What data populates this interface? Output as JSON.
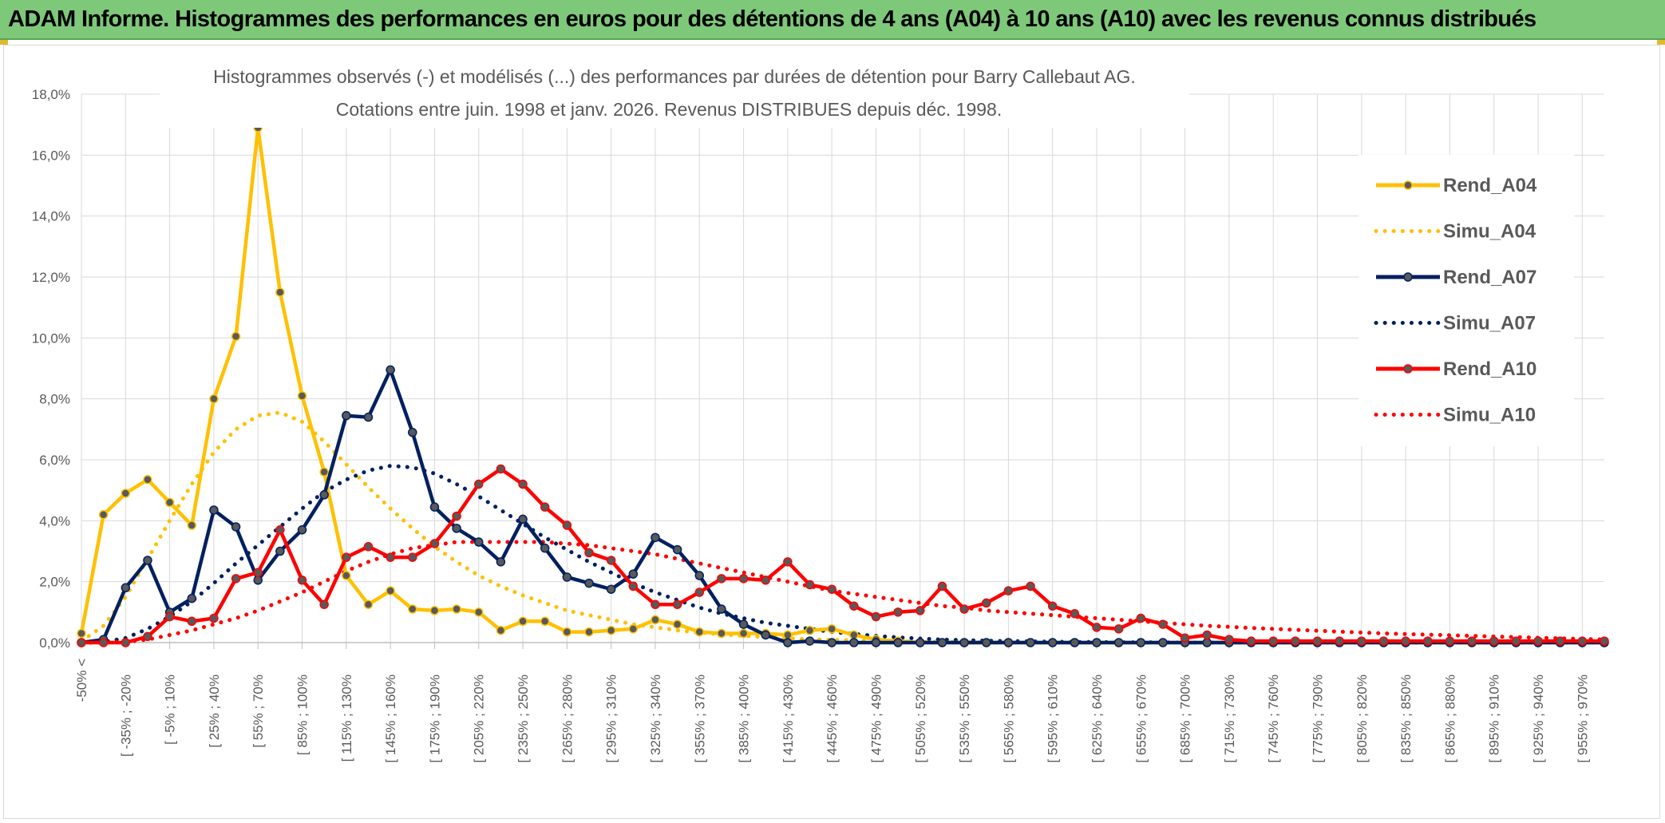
{
  "header": {
    "title": "ADAM Informe. Histogrammes des performances en euros pour des détentions de 4 ans (A04) à 10 ans (A10) avec les revenus connus distribués"
  },
  "chart_data": {
    "type": "line",
    "title": "Histogrammes observés (-) et modélisés (...) des performances par durées de détention pour Barry Callebaut AG.",
    "subtitle": "Cotations entre juin. 1998 et janv. 2026. Revenus DISTRIBUES depuis déc. 1998.",
    "xlabel": "",
    "ylabel": "",
    "ylim": [
      0,
      18
    ],
    "y_ticks": [
      "0,0%",
      "2,0%",
      "4,0%",
      "6,0%",
      "8,0%",
      "10,0%",
      "12,0%",
      "14,0%",
      "16,0%",
      "18,0%"
    ],
    "grid": true,
    "legend_position": "right",
    "x_tick_labels": [
      "-50% <",
      "[ -35% ; -20%",
      "[ -5% ; 10%",
      "[ 25% ; 40%",
      "[ 55% ; 70%",
      "[ 85% ; 100%",
      "[ 115% ; 130%",
      "[ 145% ; 160%",
      "[ 175% ; 190%",
      "[ 205% ; 220%",
      "[ 235% ; 250%",
      "[ 265% ; 280%",
      "[ 295% ; 310%",
      "[ 325% ; 340%",
      "[ 355% ; 370%",
      "[ 385% ; 400%",
      "[ 415% ; 430%",
      "[ 445% ; 460%",
      "[ 475% ; 490%",
      "[ 505% ; 520%",
      "[ 535% ; 550%",
      "[ 565% ; 580%",
      "[ 595% ; 610%",
      "[ 625% ; 640%",
      "[ 655% ; 670%",
      "[ 685% ; 700%",
      "[ 715% ; 730%",
      "[ 745% ; 760%",
      "[ 775% ; 790%",
      "[ 805% ; 820%",
      "[ 835% ; 850%",
      "[ 865% ; 880%",
      "[ 895% ; 910%",
      "[ 925% ; 940%",
      "[ 955% ; 970%"
    ],
    "x_tick_every": 2,
    "num_bins": 70,
    "series": [
      {
        "name": "Rend_A04",
        "color": "#FFC000",
        "style": "solid",
        "markers": true,
        "values": [
          0.3,
          4.2,
          4.9,
          5.35,
          4.6,
          3.85,
          8.0,
          10.05,
          16.9,
          11.5,
          8.1,
          5.6,
          2.2,
          1.25,
          1.7,
          1.1,
          1.05,
          1.1,
          1.0,
          0.4,
          0.7,
          0.7,
          0.35,
          0.35,
          0.4,
          0.45,
          0.75,
          0.6,
          0.35,
          0.3,
          0.3,
          0.3,
          0.25,
          0.4,
          0.45,
          0.25,
          0.1,
          0.05,
          0.0,
          0.0,
          0.0,
          0.0,
          0.0,
          0.0,
          0.0,
          0.0,
          0.0,
          0.0,
          0.0,
          0.0,
          0.0,
          0.0,
          0.0,
          0.0,
          0.0,
          0.0,
          0.0,
          0.0,
          0.0,
          0.0,
          0.0,
          0.0,
          0.0,
          0.0,
          0.0,
          0.0,
          0.0,
          0.0,
          0.0,
          0.0
        ]
      },
      {
        "name": "Simu_A04",
        "color": "#FFC000",
        "style": "dotted",
        "markers": false,
        "values": [
          0.05,
          0.55,
          1.5,
          2.75,
          4.0,
          5.2,
          6.25,
          7.0,
          7.45,
          7.55,
          7.25,
          6.6,
          5.85,
          5.1,
          4.4,
          3.75,
          3.15,
          2.65,
          2.2,
          1.85,
          1.55,
          1.3,
          1.05,
          0.9,
          0.75,
          0.6,
          0.5,
          0.4,
          0.33,
          0.27,
          0.22,
          0.18,
          0.14,
          0.11,
          0.09,
          0.07,
          0.05,
          0.04,
          0.03,
          0.02,
          0.02,
          0.01,
          0.01,
          0.0,
          0.0,
          0.0,
          0.0,
          0.0,
          0.0,
          0.0,
          0.0,
          0.0,
          0.0,
          0.0,
          0.0,
          0.0,
          0.0,
          0.0,
          0.0,
          0.0,
          0.0,
          0.0,
          0.0,
          0.0,
          0.0,
          0.0,
          0.0,
          0.0,
          0.0,
          0.0
        ]
      },
      {
        "name": "Rend_A07",
        "color": "#002060",
        "style": "solid",
        "markers": true,
        "values": [
          0.0,
          0.1,
          1.8,
          2.7,
          1.0,
          1.45,
          4.35,
          3.8,
          2.05,
          3.0,
          3.7,
          4.85,
          7.45,
          7.4,
          8.95,
          6.9,
          4.45,
          3.75,
          3.3,
          2.65,
          4.05,
          3.1,
          2.15,
          1.95,
          1.75,
          2.25,
          3.45,
          3.05,
          2.2,
          1.1,
          0.6,
          0.25,
          0.0,
          0.05,
          0.0,
          0.0,
          0.0,
          0.0,
          0.0,
          0.0,
          0.0,
          0.0,
          0.0,
          0.0,
          0.0,
          0.0,
          0.0,
          0.0,
          0.0,
          0.0,
          0.0,
          0.0,
          0.0,
          0.0,
          0.0,
          0.0,
          0.0,
          0.0,
          0.0,
          0.0,
          0.0,
          0.0,
          0.0,
          0.0,
          0.0,
          0.0,
          0.0,
          0.0,
          0.0,
          0.0
        ]
      },
      {
        "name": "Simu_A07",
        "color": "#002060",
        "style": "dotted",
        "markers": false,
        "values": [
          0.0,
          0.02,
          0.15,
          0.45,
          0.85,
          1.35,
          1.95,
          2.6,
          3.2,
          3.8,
          4.4,
          4.95,
          5.35,
          5.65,
          5.8,
          5.75,
          5.55,
          5.2,
          4.8,
          4.35,
          3.9,
          3.45,
          3.05,
          2.65,
          2.3,
          1.95,
          1.65,
          1.4,
          1.15,
          0.95,
          0.8,
          0.65,
          0.55,
          0.45,
          0.35,
          0.28,
          0.22,
          0.17,
          0.13,
          0.1,
          0.08,
          0.06,
          0.05,
          0.04,
          0.03,
          0.02,
          0.02,
          0.01,
          0.01,
          0.01,
          0.0,
          0.0,
          0.0,
          0.0,
          0.0,
          0.0,
          0.0,
          0.0,
          0.0,
          0.0,
          0.0,
          0.0,
          0.0,
          0.0,
          0.0,
          0.0,
          0.0,
          0.0,
          0.0,
          0.0
        ]
      },
      {
        "name": "Rend_A10",
        "color": "#FF0000",
        "style": "solid",
        "markers": true,
        "values": [
          0.0,
          0.0,
          0.0,
          0.2,
          0.85,
          0.7,
          0.8,
          2.1,
          2.3,
          3.7,
          2.05,
          1.25,
          2.8,
          3.15,
          2.8,
          2.8,
          3.25,
          4.15,
          5.2,
          5.7,
          5.2,
          4.45,
          3.85,
          2.95,
          2.7,
          1.85,
          1.25,
          1.25,
          1.65,
          2.1,
          2.1,
          2.05,
          2.65,
          1.9,
          1.75,
          1.2,
          0.85,
          1.0,
          1.05,
          1.85,
          1.1,
          1.3,
          1.7,
          1.85,
          1.2,
          0.95,
          0.5,
          0.45,
          0.8,
          0.6,
          0.15,
          0.25,
          0.1,
          0.05,
          0.05,
          0.05,
          0.05,
          0.05,
          0.05,
          0.05,
          0.05,
          0.05,
          0.05,
          0.05,
          0.05,
          0.05,
          0.05,
          0.05,
          0.05,
          0.05
        ]
      },
      {
        "name": "Simu_A10",
        "color": "#FF0000",
        "style": "dotted",
        "markers": false,
        "values": [
          0.0,
          0.0,
          0.02,
          0.1,
          0.25,
          0.4,
          0.6,
          0.8,
          1.05,
          1.35,
          1.65,
          2.0,
          2.35,
          2.65,
          2.9,
          3.1,
          3.2,
          3.3,
          3.3,
          3.3,
          3.3,
          3.3,
          3.25,
          3.2,
          3.1,
          3.0,
          2.9,
          2.75,
          2.6,
          2.45,
          2.3,
          2.15,
          2.0,
          1.85,
          1.7,
          1.6,
          1.5,
          1.4,
          1.3,
          1.2,
          1.15,
          1.05,
          1.0,
          0.95,
          0.9,
          0.85,
          0.8,
          0.75,
          0.7,
          0.65,
          0.6,
          0.55,
          0.52,
          0.48,
          0.45,
          0.42,
          0.39,
          0.36,
          0.33,
          0.3,
          0.28,
          0.26,
          0.24,
          0.22,
          0.2,
          0.18,
          0.16,
          0.14,
          0.12,
          0.1
        ]
      }
    ]
  }
}
